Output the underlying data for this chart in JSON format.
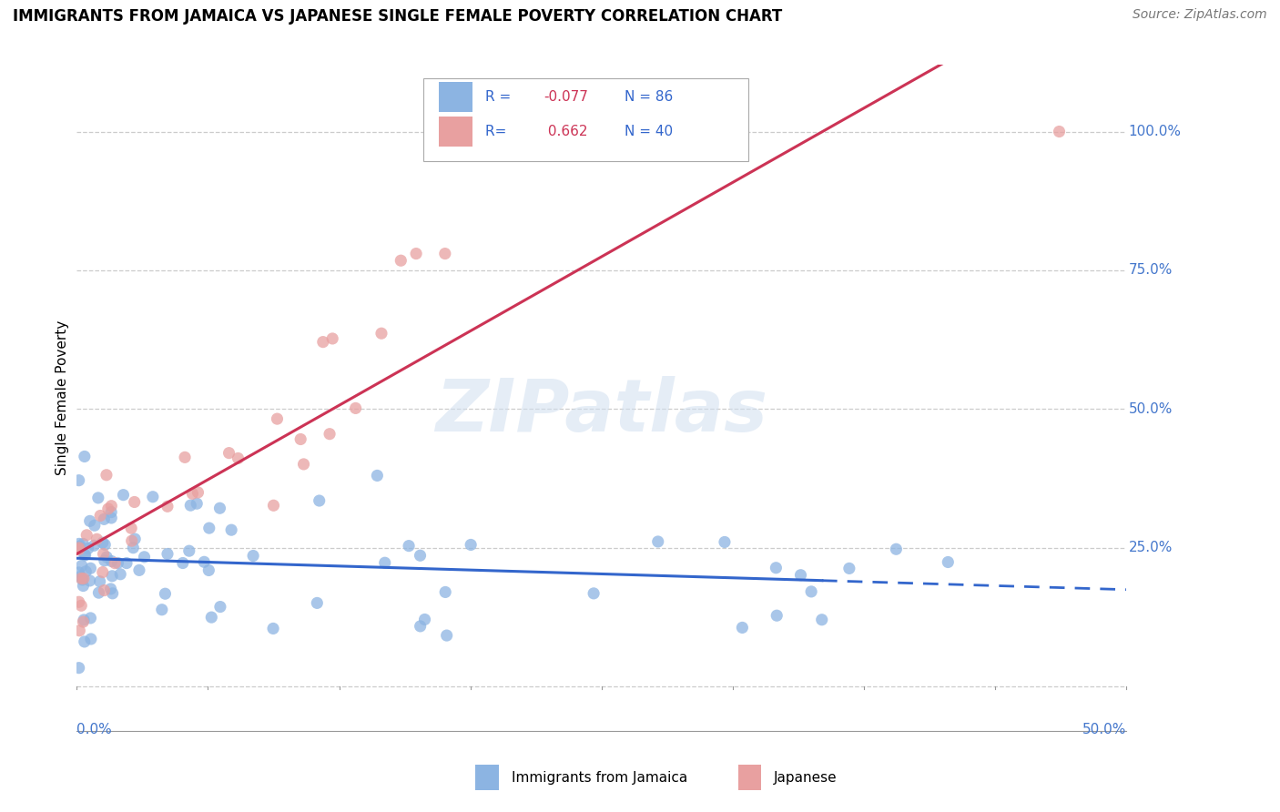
{
  "title": "IMMIGRANTS FROM JAMAICA VS JAPANESE SINGLE FEMALE POVERTY CORRELATION CHART",
  "source": "Source: ZipAtlas.com",
  "ylabel": "Single Female Poverty",
  "R_jamaica": -0.077,
  "N_jamaica": 86,
  "R_japanese": 0.662,
  "N_japanese": 40,
  "blue_color": "#8cb4e2",
  "pink_color": "#e8a0a0",
  "blue_line_color": "#3366cc",
  "pink_line_color": "#cc3355",
  "watermark": "ZIPatlas",
  "grid_color": "#cccccc",
  "background_color": "#ffffff",
  "text_blue": "#3366cc",
  "text_pink": "#cc3355",
  "axis_label_color": "#4477cc"
}
